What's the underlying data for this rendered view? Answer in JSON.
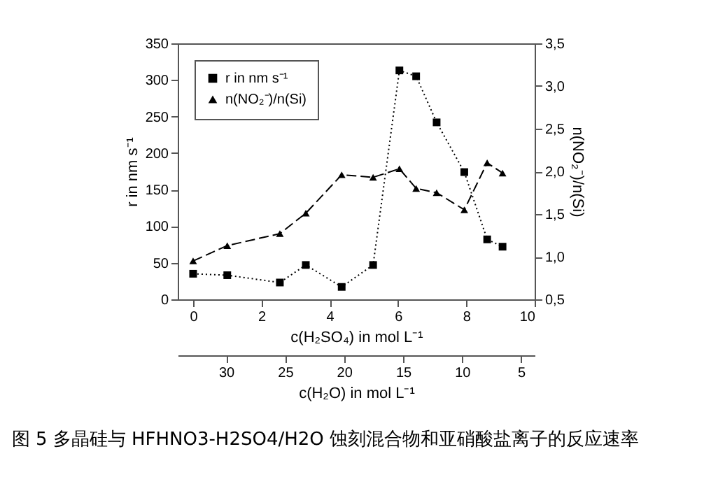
{
  "chart_data": {
    "type": "line",
    "title": "图 5 多晶硅与 HFHNO3-H2SO4/H2O 蚀刻混合物和亚硝酸盐离子的反应速率",
    "xlabel": "c(H₂SO₄) in mol L⁻¹",
    "ylabel": "r in nm s⁻¹",
    "y2label": "n(NO₂⁻)/n(Si)",
    "x2label": "c(H₂O) in mol L⁻¹",
    "x": [
      0,
      1.0,
      2.54,
      3.3,
      4.35,
      5.27,
      6.04,
      6.53,
      7.13,
      7.94,
      8.61,
      9.06
    ],
    "series": [
      {
        "name": "r in nm s⁻¹",
        "color": "#000000",
        "marker": "square",
        "line_style": "dotted",
        "values": [
          35,
          33,
          23,
          47,
          17,
          47,
          313,
          305,
          242,
          174,
          82,
          72
        ]
      },
      {
        "name": "n(NO₂⁻)/n(Si)",
        "color": "#000000",
        "marker": "triangle",
        "line_style": "dashed",
        "axis": "y2",
        "values": [
          0.95,
          1.13,
          1.27,
          1.51,
          1.96,
          1.93,
          2.03,
          1.8,
          1.75,
          1.55,
          2.1,
          1.98
        ]
      }
    ],
    "xlim": [
      -0.45,
      10
    ],
    "xticks": [
      0,
      2,
      4,
      6,
      8,
      10
    ],
    "ylim": [
      0,
      350
    ],
    "yticks": [
      0,
      50,
      100,
      150,
      200,
      250,
      300,
      350
    ],
    "y2lim": [
      0.5,
      3.5
    ],
    "y2ticks": [
      {
        "value": 0.5,
        "label": "0,5"
      },
      {
        "value": 1.0,
        "label": "1,0"
      },
      {
        "value": 1.5,
        "label": "1,5"
      },
      {
        "value": 2.0,
        "label": "2,0"
      },
      {
        "value": 2.5,
        "label": "2,5"
      },
      {
        "value": 3.0,
        "label": "3,0"
      },
      {
        "value": 3.5,
        "label": "3,5"
      }
    ],
    "x2lim": [
      34.1,
      3.85
    ],
    "x2ticks": [
      30,
      25,
      20,
      15,
      10,
      5
    ],
    "legend": "top left",
    "grid": false
  }
}
